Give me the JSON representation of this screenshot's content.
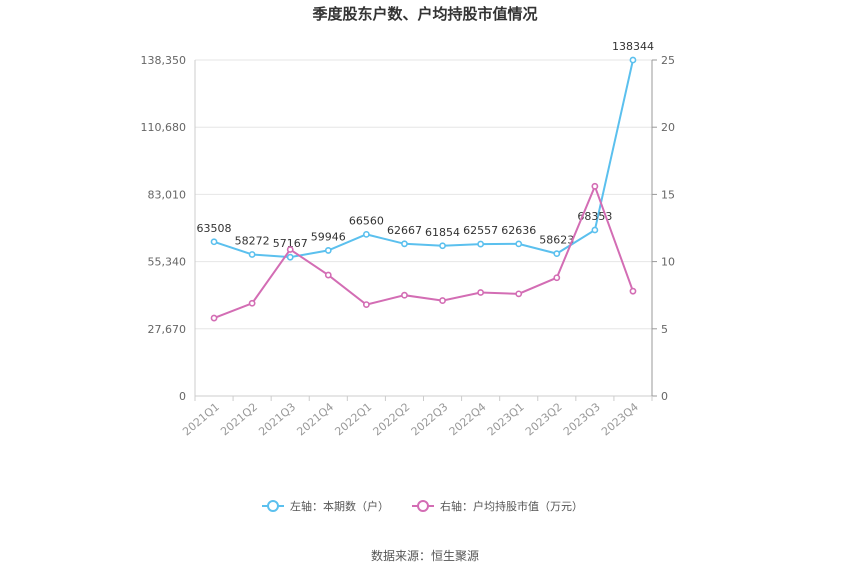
{
  "chart_data": {
    "type": "line",
    "title": "季度股东户数、户均持股市值情况",
    "categories": [
      "2021Q1",
      "2021Q2",
      "2021Q3",
      "2021Q4",
      "2022Q1",
      "2022Q2",
      "2022Q3",
      "2022Q4",
      "2023Q1",
      "2023Q2",
      "2023Q3",
      "2023Q4"
    ],
    "y_left": {
      "ticks": [
        "0",
        "27,670",
        "55,340",
        "83,010",
        "110,680",
        "138,350"
      ],
      "range": [
        0,
        138350
      ]
    },
    "y_right": {
      "ticks": [
        "0",
        "5",
        "10",
        "15",
        "20",
        "25"
      ],
      "range": [
        0,
        25
      ]
    },
    "series": [
      {
        "name": "左轴：本期数（户）",
        "axis": "left",
        "color": "#5bc0ee",
        "values": [
          63508,
          58272,
          57167,
          59946,
          66560,
          62667,
          61854,
          62557,
          62636,
          58623,
          68353,
          138344
        ],
        "labels": [
          "63508",
          "58272",
          "57167",
          "59946",
          "66560",
          "62667",
          "61854",
          "62557",
          "62636",
          "58623",
          "68353",
          "138344"
        ]
      },
      {
        "name": "右轴：户均持股市值（万元）",
        "axis": "right",
        "color": "#d36db4",
        "values": [
          5.8,
          6.9,
          10.9,
          9.0,
          6.8,
          7.5,
          7.1,
          7.7,
          7.6,
          8.8,
          15.6,
          7.8
        ]
      }
    ],
    "legend_position": "bottom",
    "grid": true
  },
  "source": "数据来源：恒生聚源"
}
